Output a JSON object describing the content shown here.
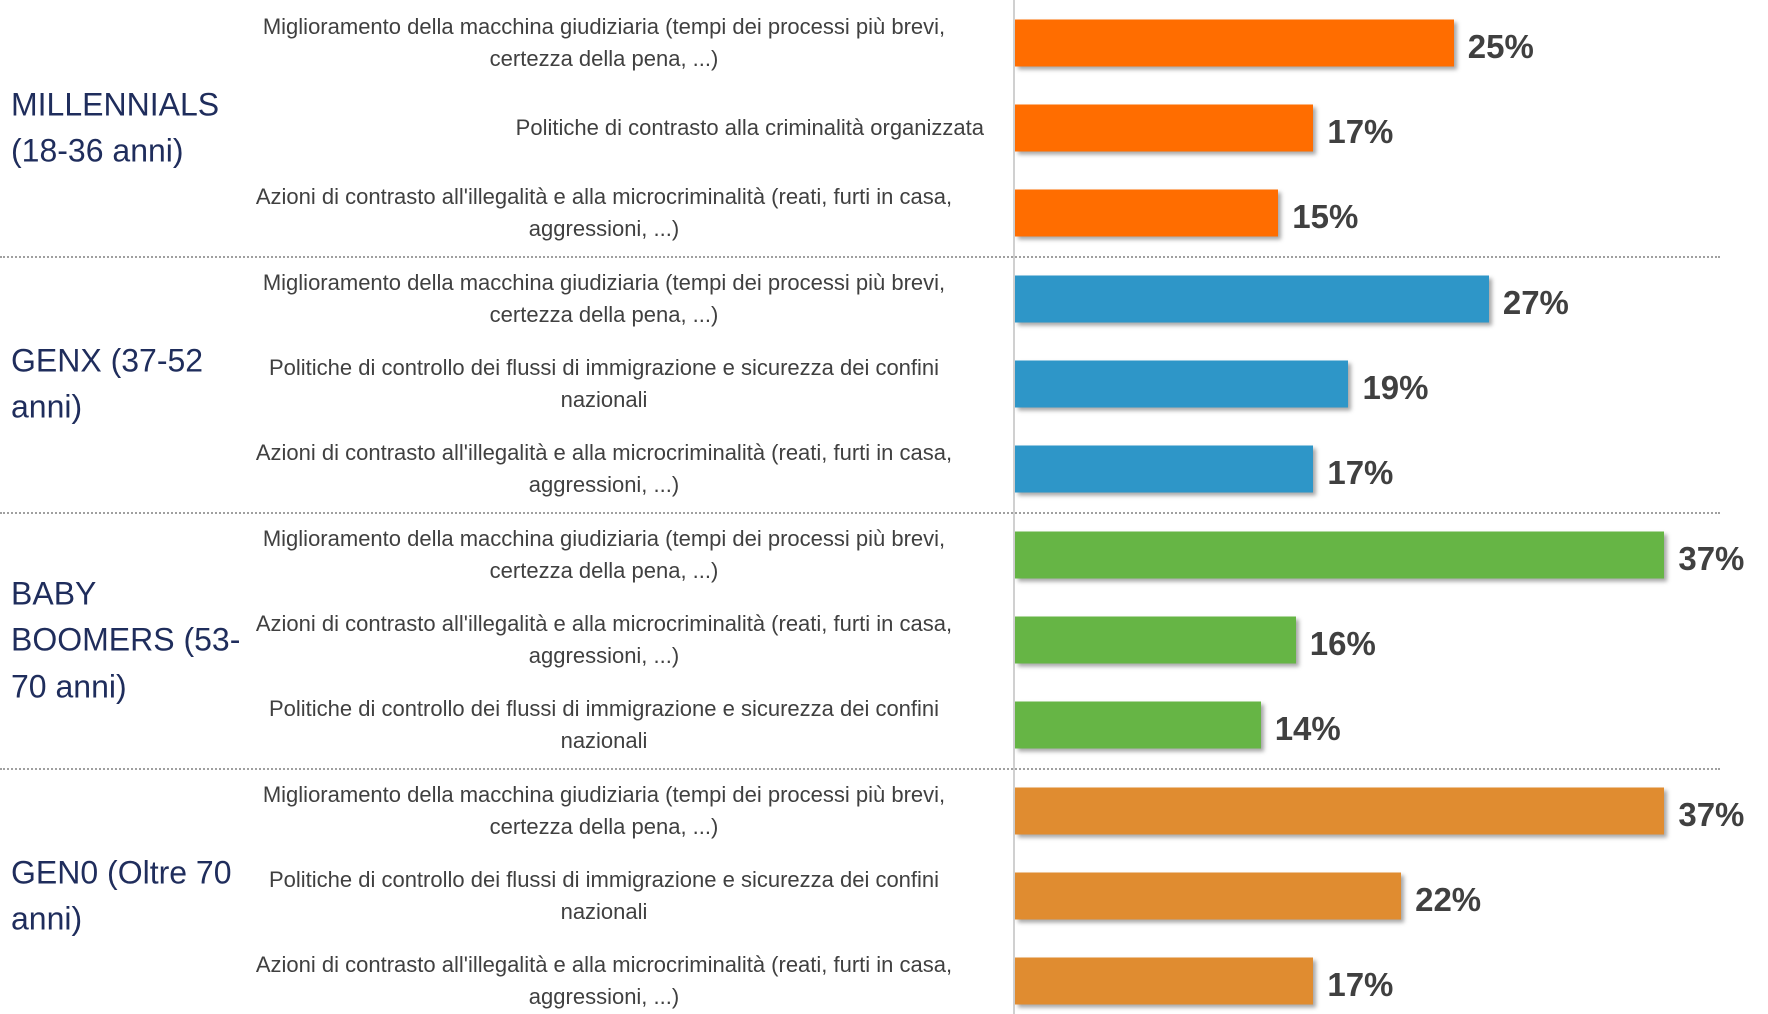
{
  "chart_data": {
    "type": "bar",
    "series": [
      {
        "name": "MILLENNIALS (18-36 anni)",
        "color": "#ff6d00",
        "categories": [
          "Miglioramento della macchina giudiziaria (tempi dei processi più brevi, certezza della pena, ...)",
          "Politiche di contrasto alla criminalità organizzata",
          "Azioni di contrasto all'illegalità e alla microcriminalità (reati, furti in casa, aggressioni, ...)"
        ],
        "values": [
          25,
          17,
          15
        ],
        "value_labels": [
          "25%",
          "17%",
          "15%"
        ]
      },
      {
        "name": "GENX (37-52 anni)",
        "color": "#2e96c8",
        "categories": [
          "Miglioramento della macchina giudiziaria (tempi dei processi più brevi, certezza della pena, ...)",
          "Politiche di controllo dei flussi di immigrazione e sicurezza dei confini nazionali",
          "Azioni di contrasto all'illegalità e alla microcriminalità (reati, furti in casa, aggressioni, ...)"
        ],
        "values": [
          27,
          19,
          17
        ],
        "value_labels": [
          "27%",
          "19%",
          "17%"
        ]
      },
      {
        "name": "BABY BOOMERS (53-70 anni)",
        "color": "#66b545",
        "categories": [
          "Miglioramento della macchina giudiziaria (tempi dei processi più brevi, certezza della pena, ...)",
          "Azioni di contrasto all'illegalità e alla microcriminalità (reati, furti in casa, aggressioni, ...)",
          "Politiche di controllo dei flussi di immigrazione e sicurezza dei confini nazionali"
        ],
        "values": [
          37,
          16,
          14
        ],
        "value_labels": [
          "37%",
          "16%",
          "14%"
        ]
      },
      {
        "name": "GEN0 (Oltre 70 anni)",
        "color": "#e08c30",
        "categories": [
          "Miglioramento della macchina giudiziaria (tempi dei processi più brevi, certezza della pena, ...)",
          "Politiche di controllo dei flussi di immigrazione e sicurezza dei confini nazionali",
          "Azioni di contrasto all'illegalità e alla microcriminalità (reati, furti in casa, aggressioni, ...)"
        ],
        "values": [
          37,
          22,
          17
        ],
        "value_labels": [
          "37%",
          "22%",
          "17%"
        ]
      }
    ]
  }
}
